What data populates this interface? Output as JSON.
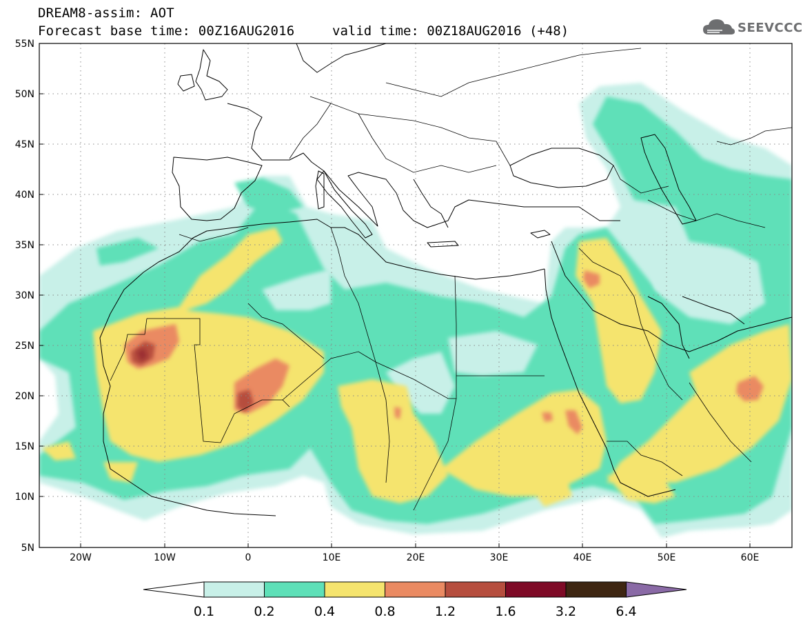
{
  "header": {
    "line1": "DREAM8-assim: AOT",
    "line2": "Forecast base time: 00Z16AUG2016",
    "valid": "valid time: 00Z18AUG2016 (+48)"
  },
  "logo": {
    "text": "SEEVCCC",
    "icon": "cloud-icon"
  },
  "map": {
    "lat_labels": [
      "55N",
      "50N",
      "45N",
      "40N",
      "35N",
      "30N",
      "25N",
      "20N",
      "15N",
      "10N",
      "5N"
    ],
    "lon_labels": [
      "20W",
      "10W",
      "0",
      "10E",
      "20E",
      "30E",
      "40E",
      "50E",
      "60E"
    ]
  },
  "colorbar": {
    "levels": [
      "0.1",
      "0.2",
      "0.4",
      "0.8",
      "1.2",
      "1.6",
      "3.2",
      "6.4"
    ],
    "colors": [
      "#c8f0e8",
      "#5ee0b8",
      "#f5e46e",
      "#ea8a62",
      "#b64e3e",
      "#7e0a26",
      "#3e2612",
      "#8a6aa6"
    ],
    "under_color": "#ffffff"
  }
}
